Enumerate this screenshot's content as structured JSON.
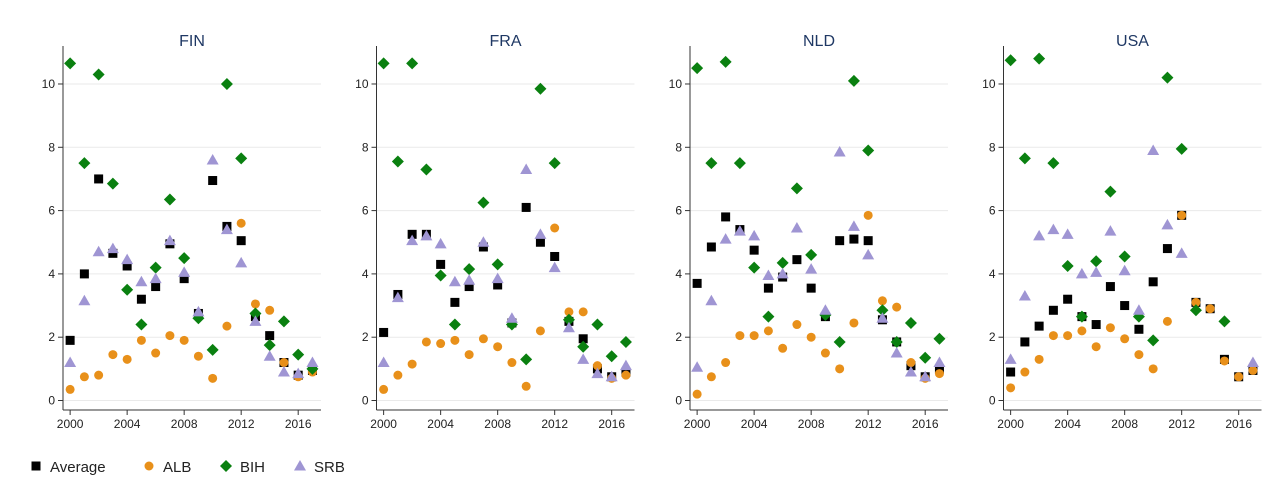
{
  "chart_data": {
    "type": "scatter",
    "x": [
      2000,
      2001,
      2002,
      2003,
      2004,
      2005,
      2006,
      2007,
      2008,
      2009,
      2010,
      2011,
      2012,
      2013,
      2014,
      2015,
      2016,
      2017
    ],
    "xlim": [
      1999.5,
      2017.6
    ],
    "xticks": [
      2000,
      2004,
      2008,
      2012,
      2016
    ],
    "ylim": [
      -0.3,
      11.2
    ],
    "yticks": [
      0,
      2,
      4,
      6,
      8,
      10
    ],
    "grid": true,
    "series": [
      {
        "name": "Average",
        "color": "#000000",
        "marker": "square"
      },
      {
        "name": "ALB",
        "color": "#e8901a",
        "marker": "circle"
      },
      {
        "name": "BIH",
        "color": "#0a8010",
        "marker": "diamond"
      },
      {
        "name": "SRB",
        "color": "#9f95d3",
        "marker": "triangle"
      }
    ],
    "panels": [
      {
        "title": "FIN",
        "values": [
          [
            1.9,
            4.0,
            7.0,
            4.65,
            4.25,
            3.2,
            3.6,
            4.95,
            3.85,
            2.75,
            6.95,
            5.5,
            5.05,
            2.65,
            2.05,
            1.2,
            0.8,
            0.95
          ],
          [
            0.35,
            0.75,
            0.8,
            1.45,
            1.3,
            1.9,
            1.5,
            2.05,
            1.9,
            1.4,
            0.7,
            2.35,
            5.6,
            3.05,
            2.85,
            1.2,
            0.75,
            0.9
          ],
          [
            10.65,
            7.5,
            10.3,
            6.85,
            3.5,
            2.4,
            4.2,
            6.35,
            4.5,
            2.6,
            1.6,
            10.0,
            7.65,
            2.75,
            1.75,
            2.5,
            1.45,
            1.0
          ],
          [
            1.2,
            3.15,
            4.7,
            4.8,
            4.45,
            3.75,
            3.85,
            5.05,
            4.05,
            2.8,
            7.6,
            5.4,
            4.35,
            2.5,
            1.4,
            0.9,
            0.85,
            1.2
          ]
        ]
      },
      {
        "title": "FRA",
        "values": [
          [
            2.15,
            3.35,
            5.25,
            5.25,
            4.3,
            3.1,
            3.6,
            4.85,
            3.65,
            2.45,
            6.1,
            5.0,
            4.55,
            2.5,
            1.95,
            1.0,
            0.75,
            0.9
          ],
          [
            0.35,
            0.8,
            1.15,
            1.85,
            1.8,
            1.9,
            1.45,
            1.95,
            1.7,
            1.2,
            0.45,
            2.2,
            5.45,
            2.8,
            2.8,
            1.1,
            0.7,
            0.8
          ],
          [
            10.65,
            7.55,
            10.65,
            7.3,
            3.95,
            2.4,
            4.15,
            6.25,
            4.3,
            2.4,
            1.3,
            9.85,
            7.5,
            2.55,
            1.7,
            2.4,
            1.4,
            1.85
          ],
          [
            1.2,
            3.25,
            5.05,
            5.2,
            4.95,
            3.75,
            3.8,
            5.0,
            3.85,
            2.6,
            7.3,
            5.25,
            4.2,
            2.3,
            1.3,
            0.85,
            0.75,
            1.1
          ]
        ]
      },
      {
        "title": "NLD",
        "values": [
          [
            3.7,
            4.85,
            5.8,
            5.4,
            4.75,
            3.55,
            3.9,
            4.45,
            3.55,
            2.65,
            5.05,
            5.1,
            5.05,
            2.55,
            1.85,
            1.1,
            0.75,
            1.0
          ],
          [
            0.2,
            0.75,
            1.2,
            2.05,
            2.05,
            2.2,
            1.65,
            2.4,
            2.0,
            1.5,
            1.0,
            2.45,
            5.85,
            3.15,
            2.95,
            1.2,
            0.7,
            0.85
          ],
          [
            10.5,
            7.5,
            10.7,
            7.5,
            4.2,
            2.65,
            4.35,
            6.7,
            4.6,
            2.7,
            1.85,
            10.1,
            7.9,
            2.85,
            1.85,
            2.45,
            1.35,
            1.95
          ],
          [
            1.05,
            3.15,
            5.1,
            5.35,
            5.2,
            3.95,
            4.0,
            5.45,
            4.15,
            2.85,
            7.85,
            5.5,
            4.6,
            2.6,
            1.5,
            0.9,
            0.75,
            1.2
          ]
        ]
      },
      {
        "title": "USA",
        "values": [
          [
            0.9,
            1.85,
            2.35,
            2.85,
            3.2,
            2.65,
            2.4,
            3.6,
            3.0,
            2.25,
            3.75,
            4.8,
            5.85,
            3.1,
            2.9,
            1.3,
            0.75,
            0.95
          ],
          [
            0.4,
            0.9,
            1.3,
            2.05,
            2.05,
            2.2,
            1.7,
            2.3,
            1.95,
            1.45,
            1.0,
            2.5,
            5.85,
            3.1,
            2.9,
            1.25,
            0.75,
            0.95
          ],
          [
            10.75,
            7.65,
            10.8,
            7.5,
            4.25,
            2.65,
            4.4,
            6.6,
            4.55,
            2.65,
            1.9,
            10.2,
            7.95,
            2.85,
            null,
            2.5,
            null,
            null
          ],
          [
            1.3,
            3.3,
            5.2,
            5.4,
            5.25,
            4.0,
            4.05,
            5.35,
            4.1,
            2.85,
            7.9,
            5.55,
            4.65,
            null,
            null,
            null,
            null,
            1.2
          ]
        ]
      }
    ]
  }
}
